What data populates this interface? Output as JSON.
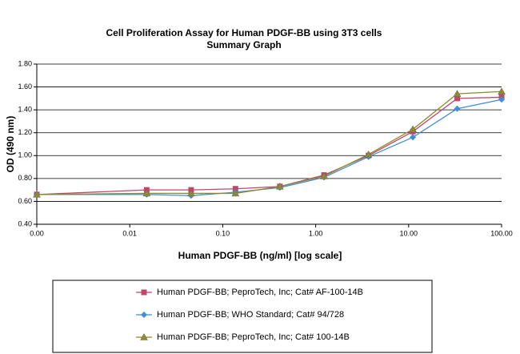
{
  "chart_data": {
    "type": "line",
    "title": "Cell Proliferation Assay  for Human PDGF-BB using 3T3 cells",
    "subtitle": "Summary  Graph",
    "x_label": "Human PDGF-BB (ng/ml) [log scale]",
    "y_label": "OD  (490 nm)",
    "x": [
      0.001,
      0.0152,
      0.0457,
      0.137,
      0.412,
      1.23,
      3.7,
      11.1,
      33.3,
      100
    ],
    "series": [
      {
        "name": "Human PDGF-BB; PeproTech, Inc; Cat# AF-100-14B",
        "color": "#c0476a",
        "marker": "square",
        "values": [
          0.66,
          0.7,
          0.7,
          0.71,
          0.73,
          0.83,
          1.0,
          1.21,
          1.5,
          1.51
        ]
      },
      {
        "name": "Human PDGF-BB; WHO Standard; Cat# 94/728",
        "color": "#3f8fd8",
        "marker": "diamond",
        "values": [
          0.66,
          0.66,
          0.65,
          0.68,
          0.72,
          0.81,
          0.99,
          1.16,
          1.41,
          1.49
        ]
      },
      {
        "name": "Human PDGF-BB; PeproTech, Inc; Cat# 100-14B",
        "color": "#8f8a2e",
        "marker": "triangle",
        "values": [
          0.66,
          0.67,
          0.67,
          0.67,
          0.73,
          0.82,
          1.01,
          1.23,
          1.54,
          1.56
        ]
      }
    ],
    "xlim": [
      0.001,
      100
    ],
    "xticks": [
      {
        "value": 0.001,
        "label": "0.00"
      },
      {
        "value": 0.01,
        "label": "0.01"
      },
      {
        "value": 0.1,
        "label": "0.10"
      },
      {
        "value": 1,
        "label": "1.00"
      },
      {
        "value": 10,
        "label": "10.00"
      },
      {
        "value": 100,
        "label": "100.00"
      }
    ],
    "x_log": true,
    "ylim": [
      0.4,
      1.8
    ],
    "yticks": [
      {
        "value": 0.4,
        "label": "0.40"
      },
      {
        "value": 0.6,
        "label": "0.60"
      },
      {
        "value": 0.8,
        "label": "0.80"
      },
      {
        "value": 1.0,
        "label": "1.00"
      },
      {
        "value": 1.2,
        "label": "1.20"
      },
      {
        "value": 1.4,
        "label": "1.40"
      },
      {
        "value": 1.6,
        "label": "1.60"
      },
      {
        "value": 1.8,
        "label": "1.80"
      }
    ],
    "grid": true,
    "legend": "bottom"
  }
}
